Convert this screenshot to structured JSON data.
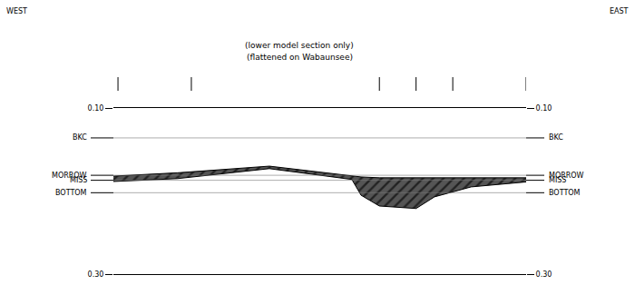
{
  "chart_data": {
    "type": "seismic_model",
    "corner_labels": {
      "left": "WEST",
      "right": "EAST"
    },
    "subtitle": [
      "(lower model section only)",
      "(flattened on Wabaunsee)"
    ],
    "xlim": [
      0,
      45
    ],
    "ylim": [
      0.1,
      0.3
    ],
    "yticks": [
      {
        "value": 0.1,
        "label": "0.10"
      },
      {
        "value": 0.3,
        "label": "0.30"
      }
    ],
    "tick_labels": "y",
    "horizons": [
      {
        "label": "BKC",
        "time": 0.136
      },
      {
        "label": "MORROW",
        "time": 0.181
      },
      {
        "label": "MISS",
        "time": 0.187
      },
      {
        "label": "BOTTOM",
        "time": 0.202
      }
    ],
    "wells": [
      0.5,
      8.5,
      29,
      33,
      37,
      45
    ],
    "layer": {
      "x": [
        0,
        7,
        17,
        26,
        27,
        29,
        33,
        35,
        39,
        45
      ],
      "top": [
        0.182,
        0.178,
        0.17,
        0.182,
        0.183,
        0.184,
        0.184,
        0.184,
        0.184,
        0.184
      ],
      "base": [
        0.1885,
        0.185,
        0.173,
        0.186,
        0.205,
        0.218,
        0.221,
        0.207,
        0.195,
        0.189
      ],
      "color": "#555555"
    }
  }
}
